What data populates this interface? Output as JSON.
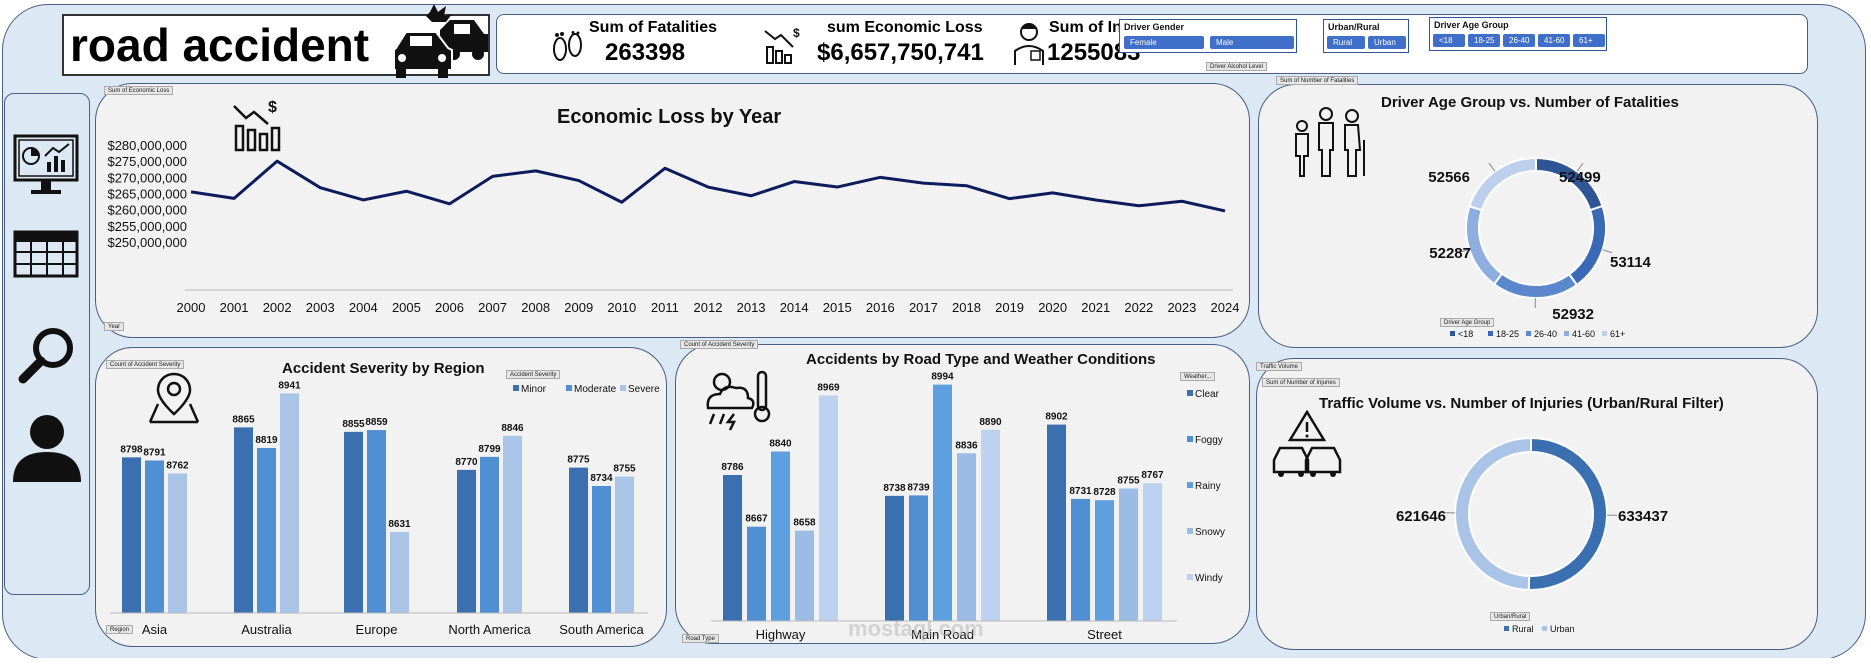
{
  "header": {
    "title": "road accident"
  },
  "kpis": [
    {
      "label": "Sum of  Fatalities",
      "value": "263398",
      "icon": "footprints-icon"
    },
    {
      "label": "sum Economic Loss",
      "value": "$6,657,750,741",
      "icon": "loss-chart-icon"
    },
    {
      "label": "Sum of Injuries",
      "value": "1255083",
      "icon": "injured-person-icon"
    }
  ],
  "slicers": {
    "gender": {
      "title": "Driver Gender",
      "options": [
        "Female",
        "Male"
      ]
    },
    "urban": {
      "title": "Urban/Rural",
      "options": [
        "Rural",
        "Urban"
      ]
    },
    "age": {
      "title": "Driver Age Group",
      "options": [
        "<18",
        "18-25",
        "26-40",
        "41-60",
        "61+"
      ]
    }
  },
  "field_buttons": {
    "driver_alcohol": "Driver Alcohol Level",
    "sum_econ": "Sum of Economic Loss",
    "sum_fatal": "Sum of Number of Fatalities",
    "year": "Year",
    "count_sev": "Count of Accident Severity",
    "acc_sev": "Accident Severity",
    "region": "Region",
    "count_sev2": "Count of Accident Severity",
    "weather": "Weather...",
    "road_type": "Road Type",
    "age_group": "Driver Age Group",
    "traffic": "Traffic Volume",
    "sum_inj": "Sum of Number of Injuries",
    "urban_rural": "Urban/Rural"
  },
  "sidebar": [
    "dashboard-icon",
    "table-icon",
    "search-icon",
    "user-icon"
  ],
  "colors": {
    "dark_blue": "#3a70b0",
    "mid_blue": "#4f8fd2",
    "light_blue": "#aac5ea",
    "line": "#0d1b5c",
    "donut_dark": "#2f5597"
  },
  "chart_data": [
    {
      "id": "econ",
      "type": "line",
      "title": "Economic Loss by Year",
      "categories": [
        "2000",
        "2001",
        "2002",
        "2003",
        "2004",
        "2005",
        "2006",
        "2007",
        "2008",
        "2009",
        "2010",
        "2011",
        "2012",
        "2013",
        "2014",
        "2015",
        "2016",
        "2017",
        "2018",
        "2019",
        "2020",
        "2021",
        "2022",
        "2023",
        "2024"
      ],
      "values": [
        265500000,
        263500000,
        275000000,
        266800000,
        263000000,
        265700000,
        261800000,
        270300000,
        272000000,
        269000000,
        262300000,
        272800000,
        267000000,
        264300000,
        268700000,
        267000000,
        270000000,
        268200000,
        267400000,
        263400000,
        265200000,
        263000000,
        261200000,
        262600000,
        259600000
      ],
      "y_ticks": [
        "$280,000,000",
        "$275,000,000",
        "$270,000,000",
        "$265,000,000",
        "$260,000,000",
        "$255,000,000",
        "$250,000,000"
      ],
      "ylim": [
        250000000,
        280000000
      ],
      "grid": false
    },
    {
      "id": "age",
      "type": "pie",
      "donut": true,
      "title": "Driver Age Group vs. Number of Fatalities",
      "categories": [
        "<18",
        "18-25",
        "26-40",
        "41-60",
        "61+"
      ],
      "values": [
        52499,
        53114,
        52932,
        52287,
        52566
      ],
      "colors": [
        "#2f5597",
        "#3a69b8",
        "#5b88cc",
        "#8eaee0",
        "#bcd0ee"
      ],
      "legend": "bottom"
    },
    {
      "id": "region",
      "type": "bar",
      "title": "Accident Severity by Region",
      "categories": [
        "Asia",
        "Australia",
        "Europe",
        "North America",
        "South America"
      ],
      "series": [
        {
          "name": "Minor",
          "values": [
            8798,
            8865,
            8855,
            8770,
            8775
          ]
        },
        {
          "name": "Moderate",
          "values": [
            8791,
            8819,
            8859,
            8799,
            8734
          ]
        },
        {
          "name": "Severe",
          "values": [
            8762,
            8941,
            8631,
            8846,
            8755
          ]
        }
      ],
      "ylim": [
        8450,
        9000
      ],
      "legend": "top-right"
    },
    {
      "id": "road",
      "type": "bar",
      "title": "Accidents by Road Type and Weather Conditions",
      "categories": [
        "Highway",
        "Main Road",
        "Street"
      ],
      "series": [
        {
          "name": "Clear",
          "values": [
            8786,
            8738,
            8902
          ]
        },
        {
          "name": "Foggy",
          "values": [
            8667,
            8739,
            8731
          ]
        },
        {
          "name": "Rainy",
          "values": [
            8840,
            8994,
            8728
          ]
        },
        {
          "name": "Snowy",
          "values": [
            8658,
            8836,
            8755
          ]
        },
        {
          "name": "Windy",
          "values": [
            8969,
            8890,
            8767
          ]
        }
      ],
      "ylim": [
        8450,
        9000
      ],
      "legend": "right"
    },
    {
      "id": "traffic",
      "type": "pie",
      "donut": true,
      "title": "Traffic Volume vs. Number of Injuries (Urban/Rural Filter)",
      "categories": [
        "Rural",
        "Urban"
      ],
      "values": [
        633437,
        621646
      ],
      "colors": [
        "#3a70b0",
        "#a9c4e7"
      ],
      "legend": "bottom"
    }
  ],
  "watermark": "mostaql.com"
}
